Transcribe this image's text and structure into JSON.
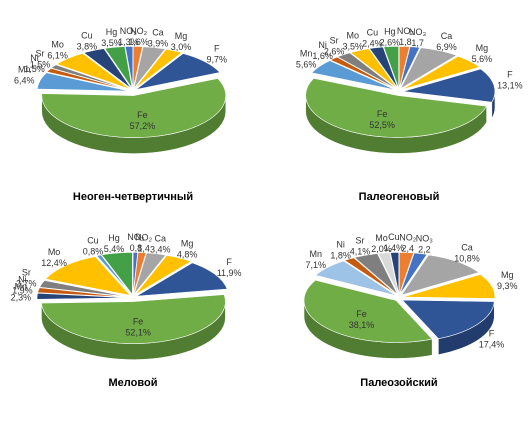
{
  "chart_data": [
    {
      "type": "pie",
      "title": "Неоген-четвертичный",
      "categories": [
        "NO₂",
        "Ca",
        "Mg",
        "F",
        "Fe",
        "Mn",
        "Ni",
        "Sr",
        "Mo",
        "Cu",
        "Hg",
        "NO₃"
      ],
      "values": [
        1.6,
        3.9,
        3.0,
        9.7,
        57.2,
        6.4,
        1.5,
        1.5,
        6.1,
        3.8,
        3.5,
        1.3
      ],
      "value_labels": [
        "1,6%",
        "3,9%",
        "3,0%",
        "9,7%",
        "57,2%",
        "6,4%",
        "1,5%",
        "1,5%",
        "6,1%",
        "3,8%",
        "3,5%",
        "1,3%"
      ],
      "colors": [
        "#ed7d31",
        "#a5a5a5",
        "#ffc000",
        "#2f5597",
        "#70ad47",
        "#5b9bd5",
        "#c55a11",
        "#7f7f7f",
        "#ffc000",
        "#264478",
        "#43a047",
        "#4472c4"
      ]
    },
    {
      "type": "pie",
      "title": "Палеогеновый",
      "categories": [
        "NO₂",
        "NO₃",
        "Ca",
        "Mg",
        "F",
        "Fe",
        "Mn",
        "Ni",
        "Sr",
        "Mo",
        "Cu",
        "Hg"
      ],
      "values": [
        1.8,
        1.7,
        6.9,
        5.6,
        13.1,
        52.5,
        5.6,
        1.6,
        2.6,
        3.5,
        2.4,
        2.6
      ],
      "value_labels": [
        "1,8",
        "1,7",
        "6,9%",
        "5,6%",
        "13,1%",
        "52,5%",
        "5,6%",
        "1,6%",
        "2,6%",
        "3,5%",
        "2,4%",
        "2,6%"
      ],
      "colors": [
        "#ed7d31",
        "#4472c4",
        "#a5a5a5",
        "#ffc000",
        "#2f5597",
        "#70ad47",
        "#5b9bd5",
        "#c55a11",
        "#7f7f7f",
        "#ffc000",
        "#264478",
        "#43a047"
      ]
    },
    {
      "type": "pie",
      "title": "Меловой",
      "categories": [
        "NO₃",
        "NO₂",
        "Ca",
        "Mg",
        "F",
        "Fe",
        "Mn",
        "Ni",
        "Sr",
        "Mo",
        "Cu",
        "Hg"
      ],
      "values": [
        0.8,
        1.4,
        3.4,
        4.8,
        11.9,
        52.1,
        2.3,
        1.9,
        2.7,
        12.4,
        0.8,
        5.4
      ],
      "value_labels": [
        "0,8",
        "1,4",
        "3,4%",
        "4,8%",
        "11,9%",
        "52,1%",
        "2,3%",
        "1,9%",
        "2,7%",
        "12,4%",
        "0,8%",
        "5,4%"
      ],
      "colors": [
        "#4472c4",
        "#ed7d31",
        "#a5a5a5",
        "#ffc000",
        "#2f5597",
        "#70ad47",
        "#264478",
        "#c55a11",
        "#7f7f7f",
        "#ffc000",
        "#5b9bd5",
        "#43a047"
      ]
    },
    {
      "type": "pie",
      "title": "Палеозойский",
      "categories": [
        "NO₂",
        "NO₃",
        "Ca",
        "Mg",
        "F",
        "Fe",
        "Mn",
        "Ni",
        "Sr",
        "Mo",
        "Cu"
      ],
      "values": [
        2.4,
        2.2,
        10.8,
        9.3,
        17.4,
        38.1,
        7.1,
        1.8,
        4.1,
        2.0,
        1.4
      ],
      "value_labels": [
        "2,4",
        "2,2",
        "10,8%",
        "9,3%",
        "17,4%",
        "38,1%",
        "7,1%",
        "1,8%",
        "4,1%",
        "2,0%",
        "1,4%"
      ],
      "colors": [
        "#ed7d31",
        "#4472c4",
        "#a5a5a5",
        "#ffc000",
        "#2f5597",
        "#70ad47",
        "#9dc3e6",
        "#c55a11",
        "#7f7f7f",
        "#d9d9d9",
        "#264478"
      ]
    }
  ]
}
